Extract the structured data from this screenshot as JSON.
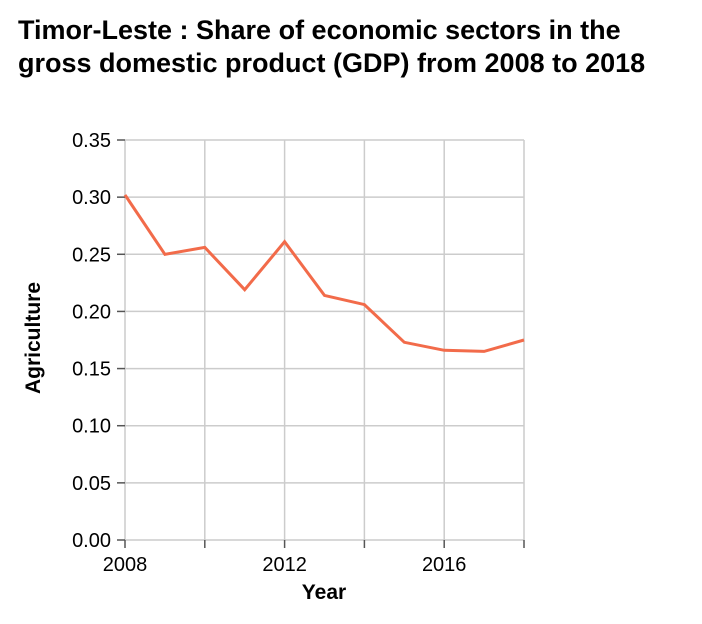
{
  "chart_data": {
    "type": "line",
    "title": "Timor-Leste : Share of economic sectors in the gross domestic product (GDP) from 2008 to 2018",
    "xlabel": "Year",
    "ylabel": "Agriculture",
    "x": [
      2008,
      2009,
      2010,
      2011,
      2012,
      2013,
      2014,
      2015,
      2016,
      2017,
      2018
    ],
    "series": [
      {
        "values": [
          0.302,
          0.25,
          0.256,
          0.219,
          0.261,
          0.214,
          0.206,
          0.173,
          0.166,
          0.165,
          0.175
        ]
      }
    ],
    "xlim": [
      2008,
      2018
    ],
    "ylim": [
      0,
      0.35
    ],
    "xticks": [
      2008,
      2010,
      2012,
      2014,
      2016,
      2018
    ],
    "xtick_labels": [
      "2008",
      "",
      "2012",
      "",
      "2016",
      ""
    ],
    "yticks": [
      "0.00",
      "0.05",
      "0.10",
      "0.15",
      "0.20",
      "0.25",
      "0.30",
      "0.35"
    ],
    "grid": true,
    "line_color": "#f26b4a",
    "grid_color": "#cccccc"
  }
}
